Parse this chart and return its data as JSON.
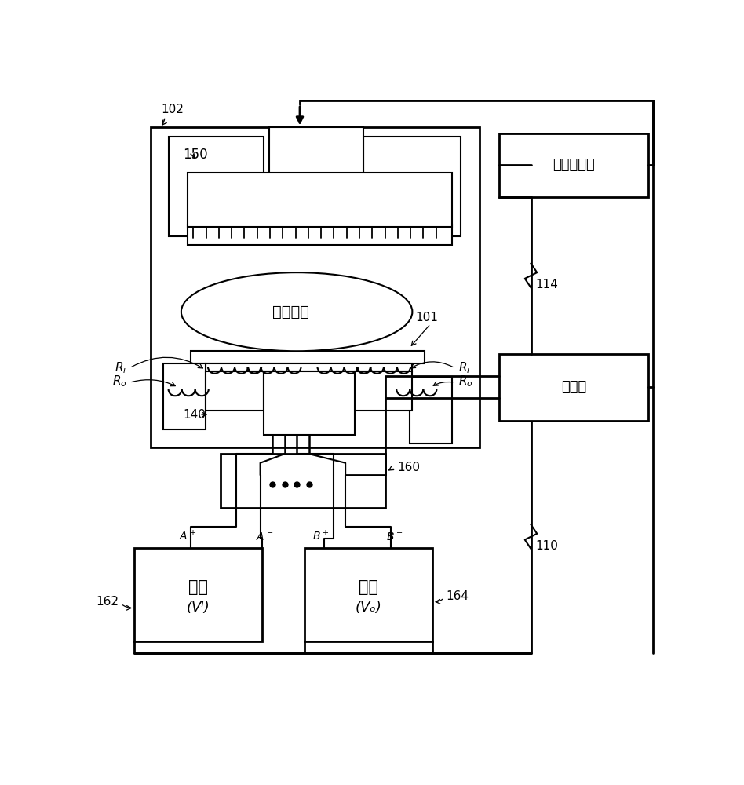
{
  "bg_color": "#ffffff",
  "lc": "#000000",
  "plasma_text": "等离子体",
  "gas_text": "气体供应源",
  "ctrl_text": "控制器",
  "power_text": "电源",
  "vi_text": "(Vᴵ)",
  "vo_text": "(Vₒ)"
}
